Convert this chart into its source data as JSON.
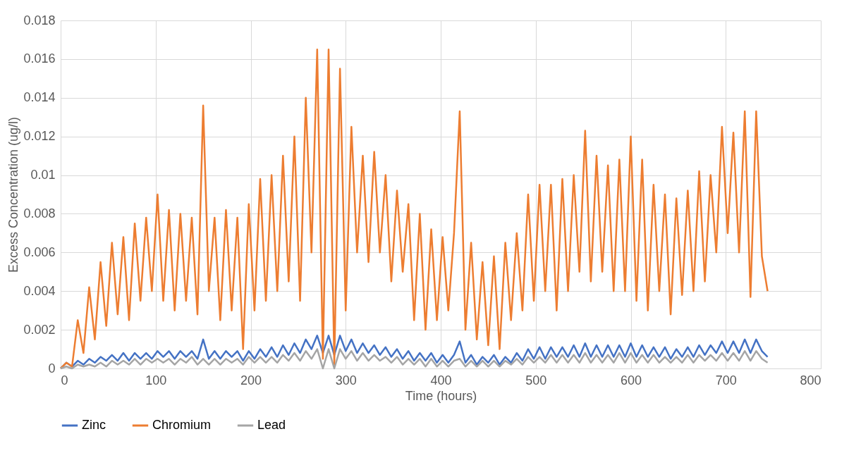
{
  "chart_data": {
    "type": "line",
    "xlabel": "Time (hours)",
    "ylabel": "Excess Concentration (ug/l)",
    "x": [
      0,
      6,
      12,
      18,
      24,
      30,
      36,
      42,
      48,
      54,
      60,
      66,
      72,
      78,
      84,
      90,
      96,
      102,
      108,
      114,
      120,
      126,
      132,
      138,
      144,
      150,
      156,
      162,
      168,
      174,
      180,
      186,
      192,
      198,
      204,
      210,
      216,
      222,
      228,
      234,
      240,
      246,
      252,
      258,
      264,
      270,
      276,
      282,
      288,
      294,
      300,
      306,
      312,
      318,
      324,
      330,
      336,
      342,
      348,
      354,
      360,
      366,
      372,
      378,
      384,
      390,
      396,
      402,
      408,
      414,
      420,
      426,
      432,
      438,
      444,
      450,
      456,
      462,
      468,
      474,
      480,
      486,
      492,
      498,
      504,
      510,
      516,
      522,
      528,
      534,
      540,
      546,
      552,
      558,
      564,
      570,
      576,
      582,
      588,
      594,
      600,
      606,
      612,
      618,
      624,
      630,
      636,
      642,
      648,
      654,
      660,
      666,
      672,
      678,
      684,
      690,
      696,
      702,
      708,
      714,
      720,
      726,
      732,
      738,
      744
    ],
    "series": [
      {
        "name": "Zinc",
        "color": "#4472c4",
        "values": [
          0,
          0.0003,
          0.0001,
          0.0004,
          0.0002,
          0.0005,
          0.0003,
          0.0006,
          0.0004,
          0.0007,
          0.0004,
          0.0008,
          0.0004,
          0.0008,
          0.0005,
          0.0008,
          0.0005,
          0.0009,
          0.0006,
          0.0009,
          0.0005,
          0.0009,
          0.0006,
          0.0009,
          0.0005,
          0.0015,
          0.0005,
          0.0009,
          0.0005,
          0.0009,
          0.0006,
          0.0009,
          0.0004,
          0.0009,
          0.0005,
          0.001,
          0.0006,
          0.0011,
          0.0006,
          0.0012,
          0.0007,
          0.0013,
          0.0008,
          0.0015,
          0.001,
          0.0017,
          0.0008,
          0.0017,
          0.0007,
          0.0017,
          0.0009,
          0.0015,
          0.0008,
          0.0013,
          0.0008,
          0.0012,
          0.0007,
          0.0011,
          0.0006,
          0.001,
          0.0005,
          0.0009,
          0.0004,
          0.0008,
          0.0004,
          0.0008,
          0.0003,
          0.0007,
          0.0003,
          0.0007,
          0.0014,
          0.0003,
          0.0007,
          0.0002,
          0.0006,
          0.0003,
          0.0007,
          0.0002,
          0.0006,
          0.0003,
          0.0008,
          0.0004,
          0.001,
          0.0005,
          0.0011,
          0.0005,
          0.0011,
          0.0006,
          0.0011,
          0.0006,
          0.0012,
          0.0006,
          0.0013,
          0.0006,
          0.0012,
          0.0006,
          0.0012,
          0.0006,
          0.0012,
          0.0006,
          0.0013,
          0.0006,
          0.0012,
          0.0006,
          0.0011,
          0.0006,
          0.0011,
          0.0005,
          0.001,
          0.0006,
          0.0011,
          0.0006,
          0.0012,
          0.0007,
          0.0012,
          0.0008,
          0.0014,
          0.0008,
          0.0014,
          0.0008,
          0.0015,
          0.0008,
          0.0015,
          0.0009,
          0.0006
        ]
      },
      {
        "name": "Chromium",
        "color": "#ed7d31",
        "values": [
          0,
          0.0003,
          0.0001,
          0.0025,
          0.0008,
          0.0042,
          0.0015,
          0.0055,
          0.0022,
          0.0065,
          0.0028,
          0.0068,
          0.0025,
          0.0075,
          0.0035,
          0.0078,
          0.004,
          0.009,
          0.0035,
          0.0082,
          0.003,
          0.008,
          0.0035,
          0.0078,
          0.0028,
          0.0136,
          0.004,
          0.0078,
          0.0025,
          0.0082,
          0.003,
          0.0078,
          0.001,
          0.0085,
          0.003,
          0.0098,
          0.0035,
          0.01,
          0.004,
          0.011,
          0.0045,
          0.012,
          0.0035,
          0.014,
          0.006,
          0.0165,
          0.0005,
          0.0165,
          0.0002,
          0.0155,
          0.003,
          0.0125,
          0.006,
          0.011,
          0.0055,
          0.0112,
          0.006,
          0.01,
          0.0045,
          0.0092,
          0.005,
          0.0085,
          0.0025,
          0.008,
          0.002,
          0.0072,
          0.0025,
          0.0068,
          0.003,
          0.007,
          0.0133,
          0.002,
          0.0065,
          0.0015,
          0.0055,
          0.0012,
          0.0058,
          0.001,
          0.0065,
          0.0025,
          0.007,
          0.003,
          0.009,
          0.0035,
          0.0095,
          0.004,
          0.0095,
          0.003,
          0.0098,
          0.004,
          0.01,
          0.005,
          0.0123,
          0.0045,
          0.011,
          0.005,
          0.0105,
          0.004,
          0.0108,
          0.004,
          0.012,
          0.0035,
          0.0108,
          0.003,
          0.0095,
          0.004,
          0.009,
          0.0028,
          0.0088,
          0.0038,
          0.0092,
          0.004,
          0.0102,
          0.0045,
          0.01,
          0.006,
          0.0125,
          0.007,
          0.0122,
          0.006,
          0.0133,
          0.0037,
          0.0133,
          0.0058,
          0.004
        ]
      },
      {
        "name": "Lead",
        "color": "#a5a5a5",
        "values": [
          0,
          0.0001,
          0,
          0.0002,
          0.0001,
          0.0002,
          0.0001,
          0.0003,
          0.0001,
          0.0004,
          0.0002,
          0.0004,
          0.0002,
          0.0005,
          0.0002,
          0.0005,
          0.0003,
          0.0005,
          0.0003,
          0.0005,
          0.0002,
          0.0005,
          0.0003,
          0.0006,
          0.0002,
          0.0005,
          0.0002,
          0.0005,
          0.0002,
          0.0005,
          0.0003,
          0.0005,
          0.0002,
          0.0006,
          0.0003,
          0.0006,
          0.0003,
          0.0006,
          0.0003,
          0.0007,
          0.0004,
          0.0008,
          0.0004,
          0.0009,
          0.0005,
          0.001,
          0,
          0.001,
          0,
          0.001,
          0.0005,
          0.0009,
          0.0004,
          0.0008,
          0.0004,
          0.0007,
          0.0004,
          0.0006,
          0.0003,
          0.0006,
          0.0002,
          0.0005,
          0.0002,
          0.0005,
          0.0001,
          0.0005,
          0.0001,
          0.0004,
          0.0001,
          0.0004,
          0.0005,
          0.0001,
          0.0004,
          0.0001,
          0.0004,
          0.0001,
          0.0004,
          0.0001,
          0.0004,
          0.0002,
          0.0005,
          0.0002,
          0.0006,
          0.0003,
          0.0006,
          0.0003,
          0.0007,
          0.0003,
          0.0007,
          0.0003,
          0.0007,
          0.0003,
          0.0008,
          0.0003,
          0.0007,
          0.0003,
          0.0007,
          0.0003,
          0.0008,
          0.0003,
          0.0008,
          0.0003,
          0.0007,
          0.0003,
          0.0007,
          0.0003,
          0.0006,
          0.0003,
          0.0006,
          0.0003,
          0.0007,
          0.0003,
          0.0007,
          0.0004,
          0.0007,
          0.0004,
          0.0008,
          0.0004,
          0.0008,
          0.0004,
          0.0009,
          0.0004,
          0.0009,
          0.0005,
          0.0003
        ]
      }
    ],
    "xlim": [
      0,
      800
    ],
    "xticks": [
      0,
      100,
      200,
      300,
      400,
      500,
      600,
      700,
      800
    ],
    "ylim": [
      0,
      0.018
    ],
    "yticks": [
      0,
      0.002,
      0.004,
      0.006,
      0.008,
      0.01,
      0.012,
      0.014,
      0.016,
      0.018
    ],
    "grid": true,
    "legend": "bottom",
    "marker": "none",
    "line_style": "solid"
  }
}
